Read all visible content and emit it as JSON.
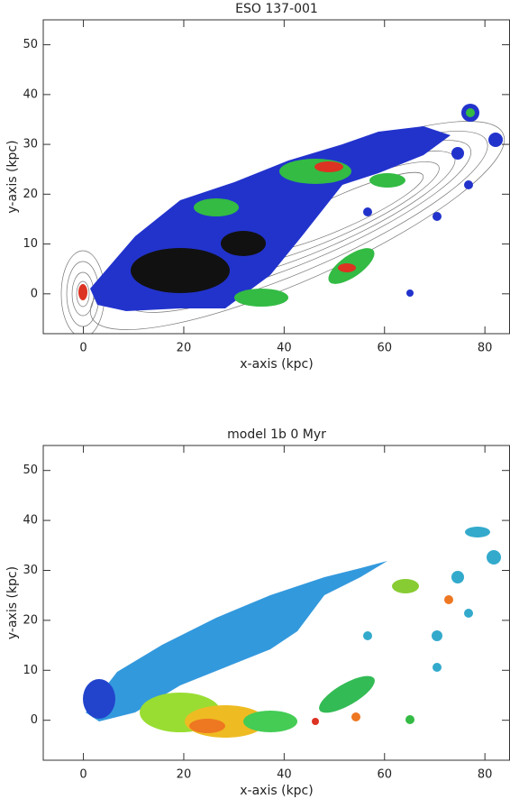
{
  "chart_data": [
    {
      "type": "map",
      "title": "ESO 137-001",
      "x_label": "x-axis (kpc)",
      "y_label": "y-axis (kpc)",
      "xlim": [
        -8,
        85
      ],
      "ylim": [
        -8,
        55
      ],
      "xticks": [
        0,
        20,
        40,
        60,
        80
      ],
      "yticks": [
        0,
        10,
        20,
        30,
        40,
        50
      ]
    },
    {
      "type": "map",
      "title": "model 1b    0 Myr",
      "x_label": "x-axis (kpc)",
      "y_label": "y-axis (kpc)",
      "xlim": [
        -8,
        85
      ],
      "ylim": [
        -8,
        55
      ],
      "xticks": [
        0,
        20,
        40,
        60,
        80
      ],
      "yticks": [
        0,
        10,
        20,
        30,
        40,
        50
      ]
    }
  ]
}
